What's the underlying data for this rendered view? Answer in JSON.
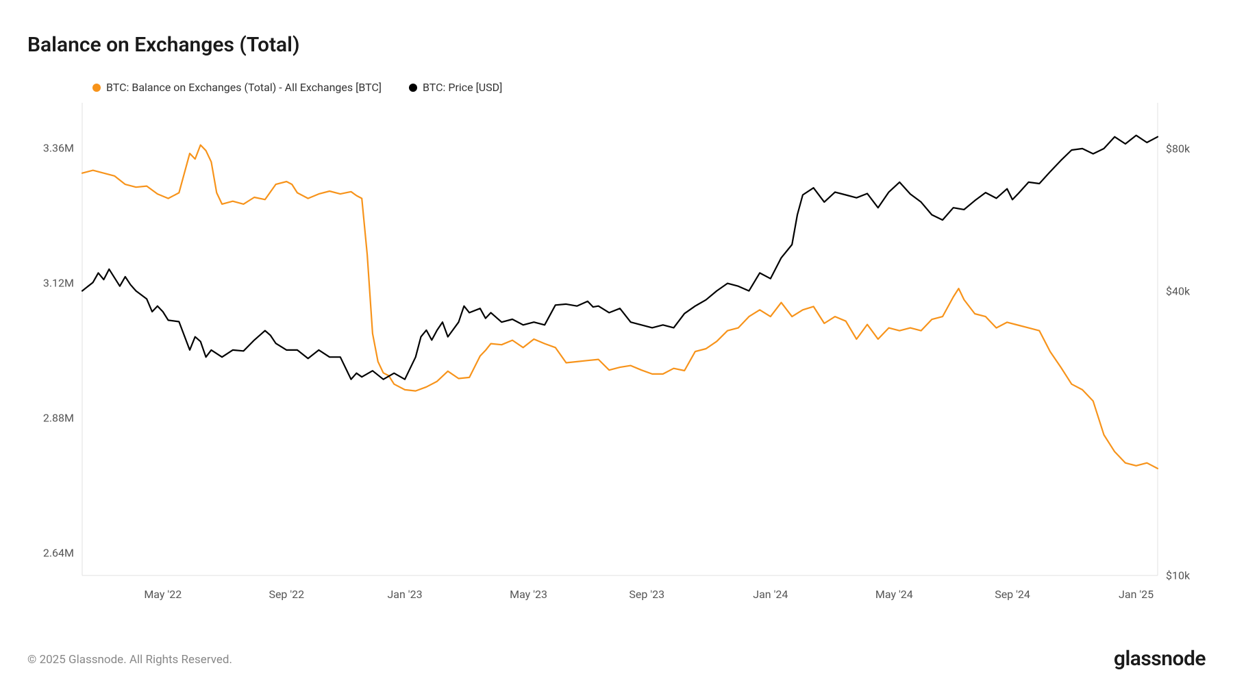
{
  "title": "Balance on Exchanges (Total)",
  "legend": {
    "series1": {
      "label": "BTC: Balance on Exchanges (Total) - All Exchanges [BTC]",
      "color": "#f7931a"
    },
    "series2": {
      "label": "BTC: Price [USD]",
      "color": "#000000"
    }
  },
  "footer": {
    "copyright": "© 2025 Glassnode. All Rights Reserved.",
    "brand": "glassnode"
  },
  "chart": {
    "type": "line",
    "background_color": "#ffffff",
    "plot_border_color": "#e0e0e0",
    "line_width": 2.2,
    "x_axis": {
      "ticks": [
        "May '22",
        "Sep '22",
        "Jan '23",
        "May '23",
        "Sep '23",
        "Jan '24",
        "May '24",
        "Sep '24",
        "Jan '25"
      ],
      "tick_positions": [
        0.075,
        0.19,
        0.3,
        0.415,
        0.525,
        0.64,
        0.755,
        0.865,
        0.98
      ]
    },
    "y_left": {
      "ticks": [
        "2.64M",
        "2.88M",
        "3.12M",
        "3.36M"
      ],
      "tick_values": [
        2.64,
        2.88,
        3.12,
        3.36
      ],
      "min": 2.6,
      "max": 3.44
    },
    "y_right": {
      "ticks": [
        "$10k",
        "$40k",
        "$80k"
      ],
      "tick_log_positions": [
        0.0,
        0.602,
        0.903
      ],
      "log_min": 0.0,
      "log_max": 1.0
    },
    "series_balance": {
      "color": "#f7931a",
      "data": [
        [
          0.0,
          3.315
        ],
        [
          0.01,
          3.32
        ],
        [
          0.02,
          3.315
        ],
        [
          0.03,
          3.31
        ],
        [
          0.04,
          3.295
        ],
        [
          0.05,
          3.29
        ],
        [
          0.06,
          3.292
        ],
        [
          0.07,
          3.278
        ],
        [
          0.08,
          3.27
        ],
        [
          0.09,
          3.28
        ],
        [
          0.1,
          3.35
        ],
        [
          0.105,
          3.34
        ],
        [
          0.11,
          3.365
        ],
        [
          0.115,
          3.355
        ],
        [
          0.12,
          3.335
        ],
        [
          0.125,
          3.28
        ],
        [
          0.13,
          3.26
        ],
        [
          0.14,
          3.265
        ],
        [
          0.15,
          3.26
        ],
        [
          0.16,
          3.272
        ],
        [
          0.17,
          3.268
        ],
        [
          0.18,
          3.295
        ],
        [
          0.19,
          3.3
        ],
        [
          0.195,
          3.295
        ],
        [
          0.2,
          3.28
        ],
        [
          0.21,
          3.27
        ],
        [
          0.22,
          3.278
        ],
        [
          0.23,
          3.283
        ],
        [
          0.24,
          3.278
        ],
        [
          0.25,
          3.282
        ],
        [
          0.255,
          3.275
        ],
        [
          0.26,
          3.27
        ],
        [
          0.265,
          3.17
        ],
        [
          0.27,
          3.03
        ],
        [
          0.275,
          2.98
        ],
        [
          0.28,
          2.96
        ],
        [
          0.285,
          2.955
        ],
        [
          0.29,
          2.94
        ],
        [
          0.3,
          2.93
        ],
        [
          0.31,
          2.928
        ],
        [
          0.32,
          2.935
        ],
        [
          0.33,
          2.945
        ],
        [
          0.34,
          2.963
        ],
        [
          0.35,
          2.95
        ],
        [
          0.36,
          2.952
        ],
        [
          0.37,
          2.99
        ],
        [
          0.375,
          3.0
        ],
        [
          0.38,
          3.012
        ],
        [
          0.39,
          3.01
        ],
        [
          0.4,
          3.018
        ],
        [
          0.41,
          3.005
        ],
        [
          0.42,
          3.02
        ],
        [
          0.43,
          3.012
        ],
        [
          0.44,
          3.005
        ],
        [
          0.45,
          2.978
        ],
        [
          0.46,
          2.98
        ],
        [
          0.47,
          2.982
        ],
        [
          0.48,
          2.984
        ],
        [
          0.49,
          2.965
        ],
        [
          0.5,
          2.97
        ],
        [
          0.51,
          2.973
        ],
        [
          0.52,
          2.965
        ],
        [
          0.53,
          2.958
        ],
        [
          0.54,
          2.958
        ],
        [
          0.55,
          2.968
        ],
        [
          0.56,
          2.964
        ],
        [
          0.57,
          2.998
        ],
        [
          0.58,
          3.003
        ],
        [
          0.59,
          3.016
        ],
        [
          0.6,
          3.035
        ],
        [
          0.61,
          3.04
        ],
        [
          0.62,
          3.06
        ],
        [
          0.63,
          3.072
        ],
        [
          0.64,
          3.06
        ],
        [
          0.65,
          3.085
        ],
        [
          0.66,
          3.06
        ],
        [
          0.67,
          3.072
        ],
        [
          0.68,
          3.078
        ],
        [
          0.69,
          3.048
        ],
        [
          0.7,
          3.06
        ],
        [
          0.71,
          3.052
        ],
        [
          0.72,
          3.02
        ],
        [
          0.73,
          3.046
        ],
        [
          0.74,
          3.02
        ],
        [
          0.75,
          3.04
        ],
        [
          0.76,
          3.035
        ],
        [
          0.77,
          3.04
        ],
        [
          0.78,
          3.035
        ],
        [
          0.79,
          3.055
        ],
        [
          0.8,
          3.06
        ],
        [
          0.81,
          3.095
        ],
        [
          0.815,
          3.11
        ],
        [
          0.82,
          3.09
        ],
        [
          0.83,
          3.065
        ],
        [
          0.84,
          3.06
        ],
        [
          0.85,
          3.04
        ],
        [
          0.86,
          3.05
        ],
        [
          0.87,
          3.045
        ],
        [
          0.88,
          3.04
        ],
        [
          0.89,
          3.035
        ],
        [
          0.9,
          2.998
        ],
        [
          0.91,
          2.97
        ],
        [
          0.92,
          2.94
        ],
        [
          0.93,
          2.93
        ],
        [
          0.94,
          2.91
        ],
        [
          0.95,
          2.85
        ],
        [
          0.96,
          2.82
        ],
        [
          0.97,
          2.8
        ],
        [
          0.98,
          2.795
        ],
        [
          0.99,
          2.8
        ],
        [
          1.0,
          2.79
        ]
      ]
    },
    "series_price": {
      "color": "#000000",
      "data_log": [
        [
          0.0,
          0.602
        ],
        [
          0.01,
          0.62
        ],
        [
          0.015,
          0.64
        ],
        [
          0.02,
          0.626
        ],
        [
          0.025,
          0.648
        ],
        [
          0.03,
          0.63
        ],
        [
          0.035,
          0.612
        ],
        [
          0.04,
          0.632
        ],
        [
          0.045,
          0.615
        ],
        [
          0.05,
          0.602
        ],
        [
          0.06,
          0.585
        ],
        [
          0.065,
          0.558
        ],
        [
          0.07,
          0.57
        ],
        [
          0.075,
          0.558
        ],
        [
          0.08,
          0.54
        ],
        [
          0.09,
          0.537
        ],
        [
          0.1,
          0.477
        ],
        [
          0.105,
          0.505
        ],
        [
          0.11,
          0.495
        ],
        [
          0.115,
          0.462
        ],
        [
          0.12,
          0.477
        ],
        [
          0.13,
          0.462
        ],
        [
          0.14,
          0.477
        ],
        [
          0.15,
          0.475
        ],
        [
          0.16,
          0.498
        ],
        [
          0.17,
          0.518
        ],
        [
          0.175,
          0.508
        ],
        [
          0.18,
          0.491
        ],
        [
          0.19,
          0.477
        ],
        [
          0.2,
          0.477
        ],
        [
          0.21,
          0.459
        ],
        [
          0.22,
          0.477
        ],
        [
          0.23,
          0.462
        ],
        [
          0.24,
          0.462
        ],
        [
          0.25,
          0.415
        ],
        [
          0.255,
          0.428
        ],
        [
          0.26,
          0.42
        ],
        [
          0.27,
          0.433
        ],
        [
          0.28,
          0.415
        ],
        [
          0.29,
          0.428
        ],
        [
          0.3,
          0.415
        ],
        [
          0.31,
          0.462
        ],
        [
          0.315,
          0.505
        ],
        [
          0.32,
          0.519
        ],
        [
          0.325,
          0.498
        ],
        [
          0.33,
          0.519
        ],
        [
          0.335,
          0.536
        ],
        [
          0.34,
          0.505
        ],
        [
          0.35,
          0.536
        ],
        [
          0.355,
          0.57
        ],
        [
          0.36,
          0.556
        ],
        [
          0.37,
          0.565
        ],
        [
          0.375,
          0.544
        ],
        [
          0.38,
          0.556
        ],
        [
          0.39,
          0.536
        ],
        [
          0.4,
          0.542
        ],
        [
          0.41,
          0.53
        ],
        [
          0.42,
          0.536
        ],
        [
          0.43,
          0.53
        ],
        [
          0.44,
          0.572
        ],
        [
          0.45,
          0.574
        ],
        [
          0.46,
          0.57
        ],
        [
          0.47,
          0.58
        ],
        [
          0.475,
          0.568
        ],
        [
          0.48,
          0.57
        ],
        [
          0.49,
          0.556
        ],
        [
          0.5,
          0.565
        ],
        [
          0.51,
          0.536
        ],
        [
          0.52,
          0.53
        ],
        [
          0.53,
          0.524
        ],
        [
          0.54,
          0.53
        ],
        [
          0.55,
          0.524
        ],
        [
          0.56,
          0.554
        ],
        [
          0.57,
          0.57
        ],
        [
          0.58,
          0.583
        ],
        [
          0.59,
          0.602
        ],
        [
          0.6,
          0.618
        ],
        [
          0.61,
          0.612
        ],
        [
          0.62,
          0.602
        ],
        [
          0.63,
          0.64
        ],
        [
          0.64,
          0.628
        ],
        [
          0.65,
          0.672
        ],
        [
          0.66,
          0.7
        ],
        [
          0.665,
          0.763
        ],
        [
          0.67,
          0.805
        ],
        [
          0.68,
          0.82
        ],
        [
          0.69,
          0.79
        ],
        [
          0.7,
          0.811
        ],
        [
          0.71,
          0.805
        ],
        [
          0.72,
          0.799
        ],
        [
          0.73,
          0.808
        ],
        [
          0.74,
          0.778
        ],
        [
          0.75,
          0.811
        ],
        [
          0.76,
          0.832
        ],
        [
          0.77,
          0.807
        ],
        [
          0.78,
          0.79
        ],
        [
          0.79,
          0.763
        ],
        [
          0.8,
          0.752
        ],
        [
          0.81,
          0.778
        ],
        [
          0.82,
          0.774
        ],
        [
          0.83,
          0.793
        ],
        [
          0.84,
          0.81
        ],
        [
          0.85,
          0.798
        ],
        [
          0.86,
          0.818
        ],
        [
          0.865,
          0.795
        ],
        [
          0.87,
          0.807
        ],
        [
          0.88,
          0.832
        ],
        [
          0.89,
          0.829
        ],
        [
          0.9,
          0.854
        ],
        [
          0.91,
          0.878
        ],
        [
          0.92,
          0.9
        ],
        [
          0.93,
          0.903
        ],
        [
          0.94,
          0.892
        ],
        [
          0.95,
          0.903
        ],
        [
          0.96,
          0.928
        ],
        [
          0.97,
          0.913
        ],
        [
          0.98,
          0.931
        ],
        [
          0.99,
          0.916
        ],
        [
          1.0,
          0.928
        ]
      ]
    }
  }
}
